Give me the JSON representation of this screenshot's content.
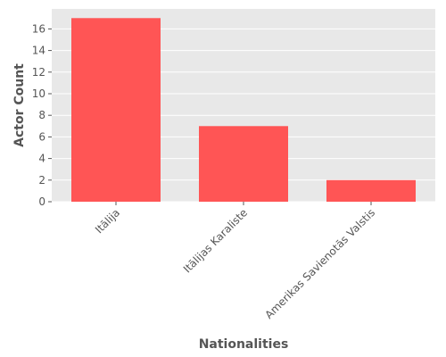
{
  "chart_data": {
    "type": "bar",
    "categories": [
      "Itālija",
      "Itālijas Karaliste",
      "Amerikas Savienotās Valstis"
    ],
    "values": [
      17,
      7,
      2
    ],
    "title": "",
    "xlabel": "Nationalities",
    "ylabel": "Actor Count",
    "ylim": [
      0,
      17.85
    ],
    "yticks": [
      "0",
      "2",
      "4",
      "6",
      "8",
      "10",
      "12",
      "14",
      "16"
    ],
    "grid": true,
    "bar_color": "#ff5555",
    "panel_background": "#e8e8e8",
    "grid_color": "#ffffff"
  }
}
